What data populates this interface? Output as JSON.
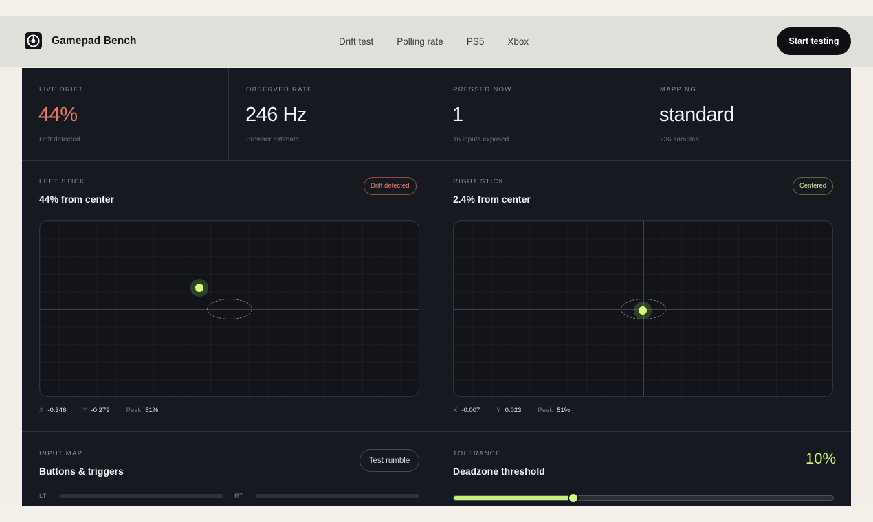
{
  "header": {
    "brand": "Gamepad Bench",
    "nav": [
      "Drift test",
      "Polling rate",
      "PS5",
      "Xbox"
    ],
    "cta": "Start testing"
  },
  "stats": [
    {
      "label": "LIVE DRIFT",
      "value": "44%",
      "sub": "Drift detected"
    },
    {
      "label": "OBSERVED RATE",
      "value": "246 Hz",
      "sub": "Browser estimate"
    },
    {
      "label": "PRESSED NOW",
      "value": "1",
      "sub": "16 inputs exposed"
    },
    {
      "label": "MAPPING",
      "value": "standard",
      "sub": "236 samples"
    }
  ],
  "left_stick": {
    "label": "LEFT STICK",
    "title": "44% from center",
    "badge": "Drift detected",
    "x": "-0.346",
    "y": "-0.279",
    "peak": "51%",
    "x_key": "X",
    "y_key": "Y",
    "peak_key": "Peak"
  },
  "right_stick": {
    "label": "RIGHT STICK",
    "title": "2.4% from center",
    "badge": "Centered",
    "x": "-0.007",
    "y": "0.023",
    "peak": "51%",
    "x_key": "X",
    "y_key": "Y",
    "peak_key": "Peak"
  },
  "input_map": {
    "label": "INPUT MAP",
    "title": "Buttons & triggers",
    "button": "Test rumble",
    "lt": "LT",
    "rt": "RT",
    "lt_level": 0,
    "rt_level": 0
  },
  "tolerance": {
    "label": "TOLERANCE",
    "title": "Deadzone threshold",
    "value": "10%",
    "slider_fraction": 0.315
  },
  "colors": {
    "accent": "#d4fb7e",
    "alert": "#ec7565",
    "panel": "#161920"
  }
}
